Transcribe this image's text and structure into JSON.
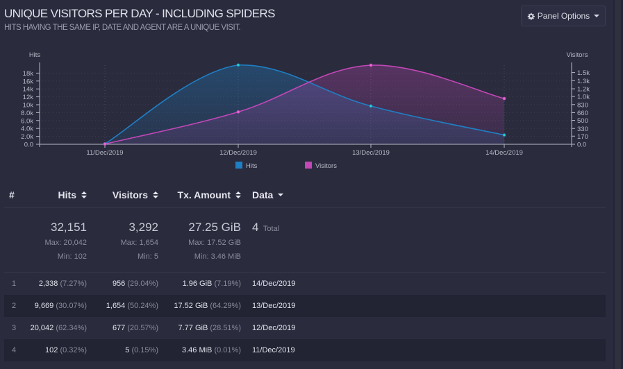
{
  "panel": {
    "title": "UNIQUE VISITORS PER DAY - INCLUDING SPIDERS",
    "subtitle": "HITS HAVING THE SAME IP, DATE AND AGENT ARE A UNIQUE VISIT.",
    "options_label": "Panel Options",
    "gear_icon": "gear-icon"
  },
  "colors": {
    "hits": "#1f7fc4",
    "visitors": "#c247b7",
    "axis": "#b8b9c6",
    "grid": "#3a3b4e"
  },
  "chart_data": {
    "type": "area",
    "categories": [
      "11/Dec/2019",
      "12/Dec/2019",
      "13/Dec/2019",
      "14/Dec/2019"
    ],
    "series": [
      {
        "name": "Hits",
        "values": [
          102,
          20042,
          9669,
          2338
        ]
      },
      {
        "name": "Visitors",
        "values": [
          5,
          677,
          1654,
          956
        ]
      }
    ],
    "left_axis": {
      "label": "Hits",
      "ylim": [
        0,
        20000
      ],
      "ticks": [
        {
          "v": 0,
          "label": "0.0"
        },
        {
          "v": 2000,
          "label": "2.0k"
        },
        {
          "v": 4000,
          "label": "4.0k"
        },
        {
          "v": 6000,
          "label": "6.0k"
        },
        {
          "v": 8000,
          "label": "8.0k"
        },
        {
          "v": 10000,
          "label": "10k"
        },
        {
          "v": 12000,
          "label": "12k"
        },
        {
          "v": 14000,
          "label": "14k"
        },
        {
          "v": 16000,
          "label": "16k"
        },
        {
          "v": 18000,
          "label": "18k"
        }
      ]
    },
    "right_axis": {
      "label": "Visitors",
      "ylim": [
        0,
        1654
      ],
      "ticks": [
        {
          "v": 0,
          "label": "0.0"
        },
        {
          "v": 170,
          "label": "170"
        },
        {
          "v": 330,
          "label": "330"
        },
        {
          "v": 500,
          "label": "500"
        },
        {
          "v": 660,
          "label": "660"
        },
        {
          "v": 830,
          "label": "830"
        },
        {
          "v": 1000,
          "label": "1.0k"
        },
        {
          "v": 1160,
          "label": "1.2k"
        },
        {
          "v": 1330,
          "label": "1.3k"
        },
        {
          "v": 1500,
          "label": "1.5k"
        }
      ]
    },
    "legend": [
      {
        "name": "Hits",
        "color": "#1f7fc4"
      },
      {
        "name": "Visitors",
        "color": "#c247b7"
      }
    ],
    "legend_position": "bottom-center",
    "grid": true
  },
  "table": {
    "headers": {
      "index": "#",
      "hits": "Hits",
      "visitors": "Visitors",
      "tx": "Tx. Amount",
      "data": "Data"
    },
    "summary": {
      "hits": {
        "total": "32,151",
        "max": "Max: 20,042",
        "min": "Min: 102"
      },
      "visitors": {
        "total": "3,292",
        "max": "Max: 1,654",
        "min": "Min: 5"
      },
      "tx": {
        "total": "27.25 GiB",
        "max": "Max: 17.52 GiB",
        "min": "Min: 3.46 MiB"
      },
      "data": {
        "count": "4",
        "label": "Total"
      }
    },
    "rows": [
      {
        "index": "1",
        "hits": "2,338",
        "hits_pct": "(7.27%)",
        "visitors": "956",
        "visitors_pct": "(29.04%)",
        "tx": "1.96 GiB",
        "tx_pct": "(7.19%)",
        "data": "14/Dec/2019"
      },
      {
        "index": "2",
        "hits": "9,669",
        "hits_pct": "(30.07%)",
        "visitors": "1,654",
        "visitors_pct": "(50.24%)",
        "tx": "17.52 GiB",
        "tx_pct": "(64.29%)",
        "data": "13/Dec/2019"
      },
      {
        "index": "3",
        "hits": "20,042",
        "hits_pct": "(62.34%)",
        "visitors": "677",
        "visitors_pct": "(20.57%)",
        "tx": "7.77 GiB",
        "tx_pct": "(28.51%)",
        "data": "12/Dec/2019"
      },
      {
        "index": "4",
        "hits": "102",
        "hits_pct": "(0.32%)",
        "visitors": "5",
        "visitors_pct": "(0.15%)",
        "tx": "3.46 MiB",
        "tx_pct": "(0.01%)",
        "data": "11/Dec/2019"
      }
    ]
  }
}
